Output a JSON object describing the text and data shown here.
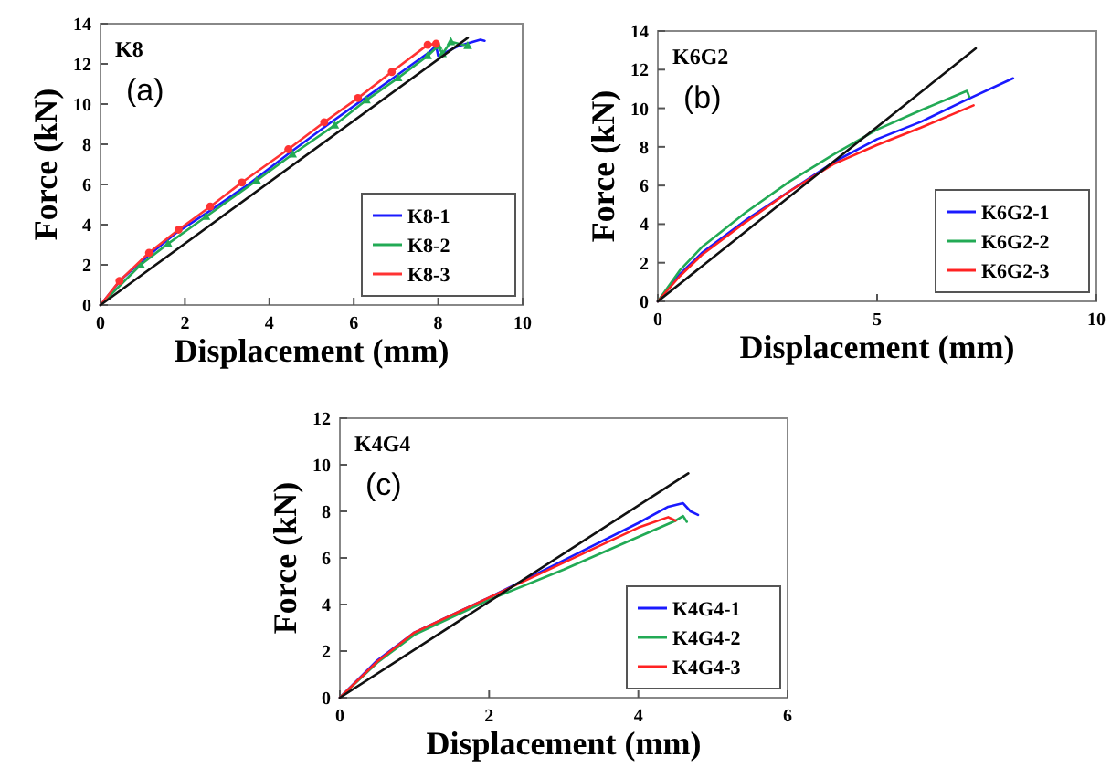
{
  "chart_data": [
    {
      "type": "line",
      "annotations": [
        "K8",
        "(a)"
      ],
      "xlabel": "Displacement (mm)",
      "ylabel": "Force (kN)",
      "xlim": [
        0,
        10
      ],
      "xticks": [
        0,
        2,
        4,
        6,
        8,
        10
      ],
      "ylim": [
        0,
        14
      ],
      "yticks": [
        0,
        2,
        4,
        6,
        8,
        10,
        12,
        14
      ],
      "legend": "bottom right",
      "grid": false,
      "series": [
        {
          "name": "K8-1",
          "color": "#1a1aff",
          "marker": "none",
          "x": [
            0,
            0.5,
            1.1,
            1.8,
            2.6,
            3.5,
            4.5,
            5.4,
            6.2,
            7.0,
            7.8,
            7.95,
            8.0,
            8.5,
            9.0,
            9.1
          ],
          "values": [
            0,
            1.3,
            2.4,
            3.6,
            4.7,
            6.0,
            7.6,
            9.0,
            10.2,
            11.4,
            12.6,
            12.9,
            12.4,
            12.9,
            13.2,
            13.15
          ]
        },
        {
          "name": "K8-2",
          "color": "#22aa55",
          "marker": "triangle",
          "x": [
            0,
            0.95,
            1.6,
            2.5,
            3.7,
            4.55,
            5.55,
            6.3,
            7.05,
            7.75,
            8.0,
            8.1,
            8.3,
            8.7
          ],
          "values": [
            0,
            2.0,
            3.05,
            4.4,
            6.2,
            7.5,
            8.95,
            10.2,
            11.3,
            12.4,
            12.9,
            12.5,
            13.1,
            12.9
          ]
        },
        {
          "name": "K8-3",
          "color": "#ff3333",
          "marker": "circle",
          "x": [
            0,
            0.45,
            1.15,
            1.85,
            2.6,
            3.35,
            4.45,
            5.3,
            6.1,
            6.9,
            7.75,
            7.95
          ],
          "values": [
            0,
            1.2,
            2.6,
            3.75,
            4.9,
            6.1,
            7.75,
            9.1,
            10.3,
            11.6,
            12.95,
            13.0
          ]
        },
        {
          "color": "#111111",
          "marker": "none",
          "x": [
            0,
            8.7
          ],
          "values": [
            0,
            13.3
          ]
        }
      ]
    },
    {
      "type": "line",
      "annotations": [
        "K6G2",
        "(b)"
      ],
      "xlabel": "Displacement (mm)",
      "ylabel": "Force (kN)",
      "xlim": [
        0,
        10
      ],
      "xticks": [
        0,
        5,
        10
      ],
      "ylim": [
        0,
        14
      ],
      "yticks": [
        0,
        2,
        4,
        6,
        8,
        10,
        12,
        14
      ],
      "legend": "bottom right",
      "grid": false,
      "series": [
        {
          "name": "K6G2-1",
          "color": "#1a1aff",
          "marker": "none",
          "x": [
            0,
            0.5,
            1,
            2,
            3,
            4,
            5,
            6,
            7,
            8.1
          ],
          "values": [
            0,
            1.4,
            2.5,
            4.2,
            5.7,
            7.2,
            8.4,
            9.3,
            10.4,
            11.55
          ]
        },
        {
          "name": "K6G2-2",
          "color": "#22aa55",
          "marker": "none",
          "x": [
            0,
            0.5,
            1,
            2,
            3,
            4,
            5,
            6,
            7.05,
            7.1
          ],
          "values": [
            0,
            1.6,
            2.8,
            4.6,
            6.2,
            7.6,
            8.9,
            9.9,
            10.9,
            10.6
          ]
        },
        {
          "name": "K6G2-3",
          "color": "#ff2222",
          "marker": "none",
          "x": [
            0,
            0.5,
            1,
            2,
            3,
            4,
            5,
            6,
            7.2
          ],
          "values": [
            0,
            1.3,
            2.4,
            4.1,
            5.7,
            7.1,
            8.1,
            9.0,
            10.15
          ]
        },
        {
          "color": "#111111",
          "marker": "none",
          "x": [
            0,
            7.25
          ],
          "values": [
            0,
            13.1
          ]
        }
      ]
    },
    {
      "type": "line",
      "annotations": [
        "K4G4",
        "(c)"
      ],
      "xlabel": "Displacement (mm)",
      "ylabel": "Force (kN)",
      "xlim": [
        0,
        6
      ],
      "xticks": [
        0,
        2,
        4,
        6
      ],
      "ylim": [
        0,
        12
      ],
      "yticks": [
        0,
        2,
        4,
        6,
        8,
        10,
        12
      ],
      "legend": "bottom right",
      "grid": false,
      "series": [
        {
          "name": "K4G4-1",
          "color": "#1a1aff",
          "marker": "none",
          "x": [
            0,
            0.5,
            1,
            2,
            3,
            4,
            4.4,
            4.6,
            4.7,
            4.8
          ],
          "values": [
            0,
            1.6,
            2.8,
            4.3,
            5.9,
            7.5,
            8.2,
            8.35,
            8.0,
            7.85
          ]
        },
        {
          "name": "K4G4-2",
          "color": "#22aa55",
          "marker": "none",
          "x": [
            0,
            0.5,
            1,
            2,
            3,
            4,
            4.5,
            4.6,
            4.65
          ],
          "values": [
            0,
            1.5,
            2.7,
            4.2,
            5.5,
            6.9,
            7.6,
            7.8,
            7.55
          ]
        },
        {
          "name": "K4G4-3",
          "color": "#ff2222",
          "marker": "none",
          "x": [
            0,
            0.5,
            1,
            2,
            3,
            4,
            4.4,
            4.5
          ],
          "values": [
            0,
            1.55,
            2.8,
            4.3,
            5.8,
            7.3,
            7.75,
            7.6
          ]
        },
        {
          "color": "#111111",
          "marker": "none",
          "x": [
            0,
            4.67
          ],
          "values": [
            0,
            9.63
          ]
        }
      ]
    }
  ]
}
